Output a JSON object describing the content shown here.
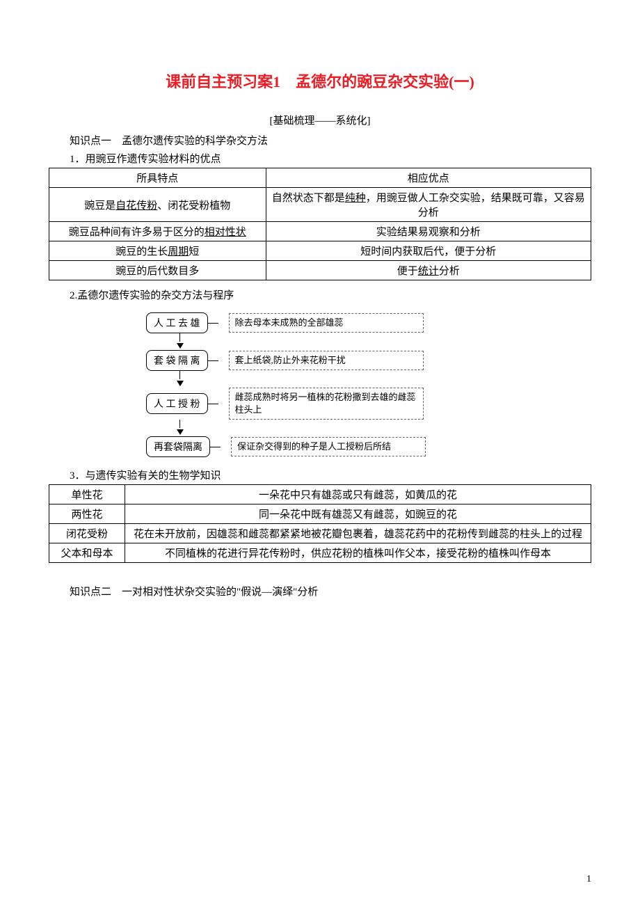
{
  "title": "课前自主预习案1　孟德尔的豌豆杂交实验(一)",
  "section_header": "[基础梳理——系统化]",
  "knowledge_point_1": "知识点一　孟德尔遗传实验的科学杂交方法",
  "item_1_title": "1．用豌豆作遗传实验材料的优点",
  "table1": {
    "header_left": "所具特点",
    "header_right": "相应优点",
    "rows": [
      {
        "left_parts": [
          "豌豆是",
          "自花传粉",
          "、闭花受粉植物"
        ],
        "left_underline": [
          false,
          true,
          false
        ],
        "right_parts": [
          "自然状态下都是",
          "纯种",
          "，用豌豆做人工杂交实验，结果既可靠，又容易分析"
        ],
        "right_underline": [
          false,
          true,
          false
        ]
      },
      {
        "left_parts": [
          "豌豆品种间有许多易于区分的",
          "相对性状"
        ],
        "left_underline": [
          false,
          true
        ],
        "right_parts": [
          "实验结果易观察和分析"
        ],
        "right_underline": [
          false
        ]
      },
      {
        "left_parts": [
          "豌豆的生长",
          "周期",
          "短"
        ],
        "left_underline": [
          false,
          true,
          false
        ],
        "right_parts": [
          "短时间内获取后代，便于分析"
        ],
        "right_underline": [
          false
        ]
      },
      {
        "left_parts": [
          "豌豆的后代数目多"
        ],
        "left_underline": [
          false
        ],
        "right_parts": [
          "便于",
          "统计",
          "分析"
        ],
        "right_underline": [
          false,
          true,
          false
        ]
      }
    ]
  },
  "item_2_title": "2.孟德尔遗传实验的杂交方法与程序",
  "diagram": {
    "steps": [
      {
        "box": "人 工 去 雄",
        "desc": "除去母本未成熟的全部雄蕊"
      },
      {
        "box": "套 袋 隔 离",
        "desc": "套上纸袋,防止外来花粉干扰"
      },
      {
        "box": "人 工 授 粉",
        "desc": "雌蕊成熟时将另一植株的花粉撒到去雄的雌蕊柱头上"
      },
      {
        "box": "再套袋隔离",
        "desc": "保证杂交得到的种子是人工授粉后所结"
      }
    ]
  },
  "item_3_title": "3．与遗传实验有关的生物学知识",
  "table2": {
    "rows": [
      {
        "label": "单性花",
        "desc": "一朵花中只有雄蕊或只有雌蕊，如黄瓜的花"
      },
      {
        "label": "两性花",
        "desc": "同一朵花中既有雄蕊又有雌蕊，如豌豆的花"
      },
      {
        "label": "闭花受粉",
        "desc": "花在未开放前，因雄蕊和雌蕊都紧紧地被花瓣包裹着，雄蕊花药中的花粉传到雌蕊的柱头上的过程"
      },
      {
        "label": "父本和母本",
        "desc": "不同植株的花进行异花传粉时，供应花粉的植株叫作父本，接受花粉的植株叫作母本"
      }
    ]
  },
  "knowledge_point_2": "知识点二　一对相对性状杂交实验的\"假说—演绎\"分析",
  "page_number": "1",
  "colors": {
    "title_color": "#ed1c24",
    "text_color": "#000000",
    "border_color": "#000000",
    "background_color": "#ffffff"
  }
}
